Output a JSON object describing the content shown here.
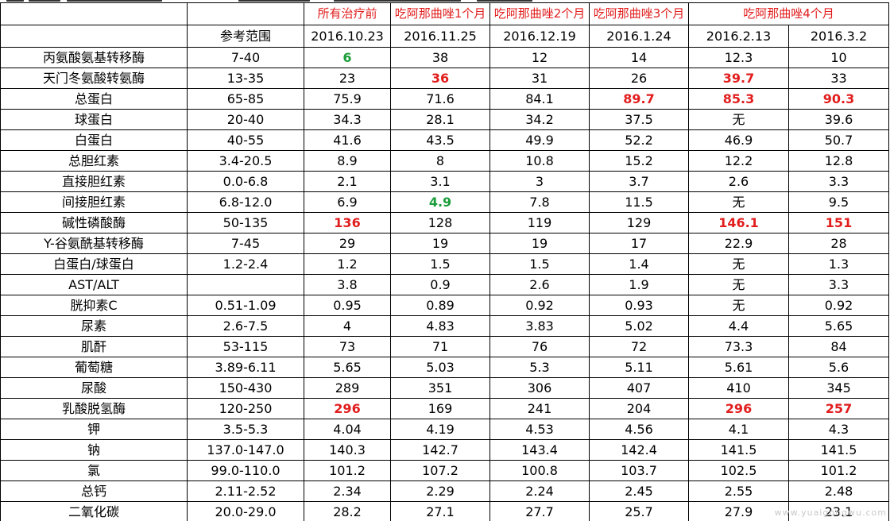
{
  "colors": {
    "high": "#e21d1d",
    "low": "#1a9d3a",
    "normal": "#000000"
  },
  "header": {
    "range_label": "参考范围",
    "phase_labels": [
      "所有治疗前",
      "吃阿那曲唑1个月",
      "吃阿那曲唑2个月",
      "吃阿那曲唑3个月",
      "吃阿那曲唑4个月"
    ],
    "dates": [
      "2016.10.23",
      "2016.11.25",
      "2016.12.19",
      "2016.1.24",
      "2016.2.13",
      "2016.3.2"
    ]
  },
  "rows": [
    {
      "name": "丙氨酸氨基转移酶",
      "range": "7-40",
      "values": [
        {
          "v": "6",
          "flag": "low"
        },
        {
          "v": "38"
        },
        {
          "v": "12"
        },
        {
          "v": "14"
        },
        {
          "v": "12.3"
        },
        {
          "v": "10"
        }
      ]
    },
    {
      "name": "天门冬氨酸转氨酶",
      "range": "13-35",
      "values": [
        {
          "v": "23"
        },
        {
          "v": "36",
          "flag": "high"
        },
        {
          "v": "31"
        },
        {
          "v": "26"
        },
        {
          "v": "39.7",
          "flag": "high"
        },
        {
          "v": "33"
        }
      ]
    },
    {
      "name": "总蛋白",
      "range": "65-85",
      "values": [
        {
          "v": "75.9"
        },
        {
          "v": "71.6"
        },
        {
          "v": "84.1"
        },
        {
          "v": "89.7",
          "flag": "high"
        },
        {
          "v": "85.3",
          "flag": "high"
        },
        {
          "v": "90.3",
          "flag": "high"
        }
      ]
    },
    {
      "name": "球蛋白",
      "range": "20-40",
      "values": [
        {
          "v": "34.3"
        },
        {
          "v": "28.1"
        },
        {
          "v": "34.2"
        },
        {
          "v": "37.5"
        },
        {
          "v": "无"
        },
        {
          "v": "39.6"
        }
      ]
    },
    {
      "name": "白蛋白",
      "range": "40-55",
      "values": [
        {
          "v": "41.6"
        },
        {
          "v": "43.5"
        },
        {
          "v": "49.9"
        },
        {
          "v": "52.2"
        },
        {
          "v": "46.9"
        },
        {
          "v": "50.7"
        }
      ]
    },
    {
      "name": "总胆红素",
      "range": "3.4-20.5",
      "values": [
        {
          "v": "8.9"
        },
        {
          "v": "8"
        },
        {
          "v": "10.8"
        },
        {
          "v": "15.2"
        },
        {
          "v": "12.2"
        },
        {
          "v": "12.8"
        }
      ]
    },
    {
      "name": "直接胆红素",
      "range": "0.0-6.8",
      "values": [
        {
          "v": "2.1"
        },
        {
          "v": "3.1"
        },
        {
          "v": "3"
        },
        {
          "v": "3.7"
        },
        {
          "v": "2.6"
        },
        {
          "v": "3.3"
        }
      ]
    },
    {
      "name": "间接胆红素",
      "range": "6.8-12.0",
      "values": [
        {
          "v": "6.9"
        },
        {
          "v": "4.9",
          "flag": "low"
        },
        {
          "v": "7.8"
        },
        {
          "v": "11.5"
        },
        {
          "v": "无"
        },
        {
          "v": "9.5"
        }
      ]
    },
    {
      "name": "碱性磷酸酶",
      "range": "50-135",
      "values": [
        {
          "v": "136",
          "flag": "high"
        },
        {
          "v": "128"
        },
        {
          "v": "119"
        },
        {
          "v": "129"
        },
        {
          "v": "146.1",
          "flag": "high"
        },
        {
          "v": "151",
          "flag": "high"
        }
      ]
    },
    {
      "name": "Y-谷氨酰基转移酶",
      "range": "7-45",
      "values": [
        {
          "v": "29"
        },
        {
          "v": "19"
        },
        {
          "v": "19"
        },
        {
          "v": "17"
        },
        {
          "v": "22.9"
        },
        {
          "v": "28"
        }
      ]
    },
    {
      "name": "白蛋白/球蛋白",
      "range": "1.2-2.4",
      "values": [
        {
          "v": "1.2"
        },
        {
          "v": "1.5"
        },
        {
          "v": "1.5"
        },
        {
          "v": "1.4"
        },
        {
          "v": "无"
        },
        {
          "v": "1.3"
        }
      ]
    },
    {
      "name": "AST/ALT",
      "range": "",
      "values": [
        {
          "v": "3.8"
        },
        {
          "v": "0.9"
        },
        {
          "v": "2.6"
        },
        {
          "v": "1.9"
        },
        {
          "v": "无"
        },
        {
          "v": "3.3"
        }
      ]
    },
    {
      "name": "胱抑素C",
      "range": "0.51-1.09",
      "values": [
        {
          "v": "0.95"
        },
        {
          "v": "0.89"
        },
        {
          "v": "0.92"
        },
        {
          "v": "0.93"
        },
        {
          "v": "无"
        },
        {
          "v": "0.92"
        }
      ]
    },
    {
      "name": "尿素",
      "range": "2.6-7.5",
      "values": [
        {
          "v": "4"
        },
        {
          "v": "4.83"
        },
        {
          "v": "3.83"
        },
        {
          "v": "5.02"
        },
        {
          "v": "4.4"
        },
        {
          "v": "5.65"
        }
      ]
    },
    {
      "name": "肌酐",
      "range": "53-115",
      "values": [
        {
          "v": "73"
        },
        {
          "v": "71"
        },
        {
          "v": "76"
        },
        {
          "v": "72"
        },
        {
          "v": "73.3"
        },
        {
          "v": "84"
        }
      ]
    },
    {
      "name": "葡萄糖",
      "range": "3.89-6.11",
      "values": [
        {
          "v": "5.65"
        },
        {
          "v": "5.03"
        },
        {
          "v": "5.3"
        },
        {
          "v": "5.11"
        },
        {
          "v": "5.61"
        },
        {
          "v": "5.6"
        }
      ]
    },
    {
      "name": "尿酸",
      "range": "150-430",
      "values": [
        {
          "v": "289"
        },
        {
          "v": "351"
        },
        {
          "v": "306"
        },
        {
          "v": "407"
        },
        {
          "v": "410"
        },
        {
          "v": "345"
        }
      ]
    },
    {
      "name": "乳酸脱氢酶",
      "range": "120-250",
      "values": [
        {
          "v": "296",
          "flag": "high"
        },
        {
          "v": "169"
        },
        {
          "v": "241"
        },
        {
          "v": "204"
        },
        {
          "v": "296",
          "flag": "high"
        },
        {
          "v": "257",
          "flag": "high"
        }
      ]
    },
    {
      "name": "钾",
      "range": "3.5-5.3",
      "values": [
        {
          "v": "4.04"
        },
        {
          "v": "4.19"
        },
        {
          "v": "4.53"
        },
        {
          "v": "4.56"
        },
        {
          "v": "4.1"
        },
        {
          "v": "4.3"
        }
      ]
    },
    {
      "name": "钠",
      "range": "137.0-147.0",
      "values": [
        {
          "v": "140.3"
        },
        {
          "v": "142.7"
        },
        {
          "v": "143.4"
        },
        {
          "v": "142.4"
        },
        {
          "v": "141.5"
        },
        {
          "v": "141.5"
        }
      ]
    },
    {
      "name": "氯",
      "range": "99.0-110.0",
      "values": [
        {
          "v": "101.2"
        },
        {
          "v": "107.2"
        },
        {
          "v": "100.8"
        },
        {
          "v": "103.7"
        },
        {
          "v": "102.5"
        },
        {
          "v": "101.2"
        }
      ]
    },
    {
      "name": "总钙",
      "range": "2.11-2.52",
      "values": [
        {
          "v": "2.34"
        },
        {
          "v": "2.29"
        },
        {
          "v": "2.24"
        },
        {
          "v": "2.45"
        },
        {
          "v": "2.55"
        },
        {
          "v": "2.48"
        }
      ]
    },
    {
      "name": "二氧化碳",
      "range": "20.0-29.0",
      "values": [
        {
          "v": "28.2"
        },
        {
          "v": "27.1"
        },
        {
          "v": "27.7"
        },
        {
          "v": "25.7"
        },
        {
          "v": "27.9"
        },
        {
          "v": "23.1"
        }
      ]
    }
  ],
  "watermark": "www.yuaigongwu.com"
}
